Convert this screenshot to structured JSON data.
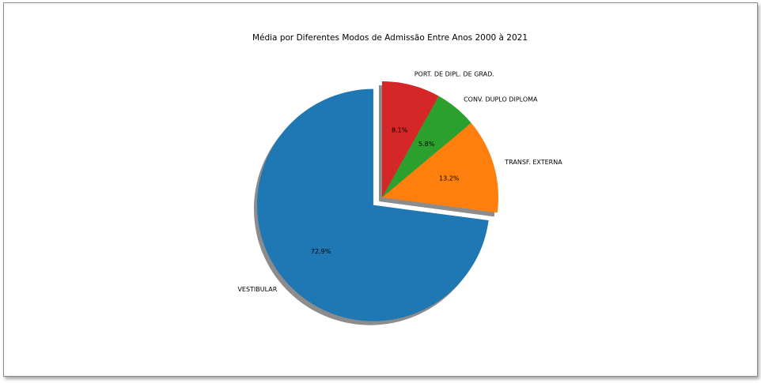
{
  "chart_data": {
    "type": "pie",
    "title": "Média por Diferentes Modos de Admissão Entre Anos 2000 à 2021",
    "slices": [
      {
        "label": "VESTIBULAR",
        "value": 72.9,
        "pct_label": "72.9%",
        "color": "#1f77b4",
        "exploded": true
      },
      {
        "label": "TRANSF. EXTERNA",
        "value": 13.2,
        "pct_label": "13.2%",
        "color": "#ff7f0e",
        "exploded": false
      },
      {
        "label": "CONV. DUPLO DIPLOMA",
        "value": 5.8,
        "pct_label": "5.8%",
        "color": "#2ca02c",
        "exploded": false
      },
      {
        "label": "PORT. DE DIPL. DE GRAD.",
        "value": 8.1,
        "pct_label": "8.1%",
        "color": "#d62728",
        "exploded": false
      }
    ],
    "start_angle": 90,
    "direction": "counterclockwise",
    "shadow": true
  }
}
